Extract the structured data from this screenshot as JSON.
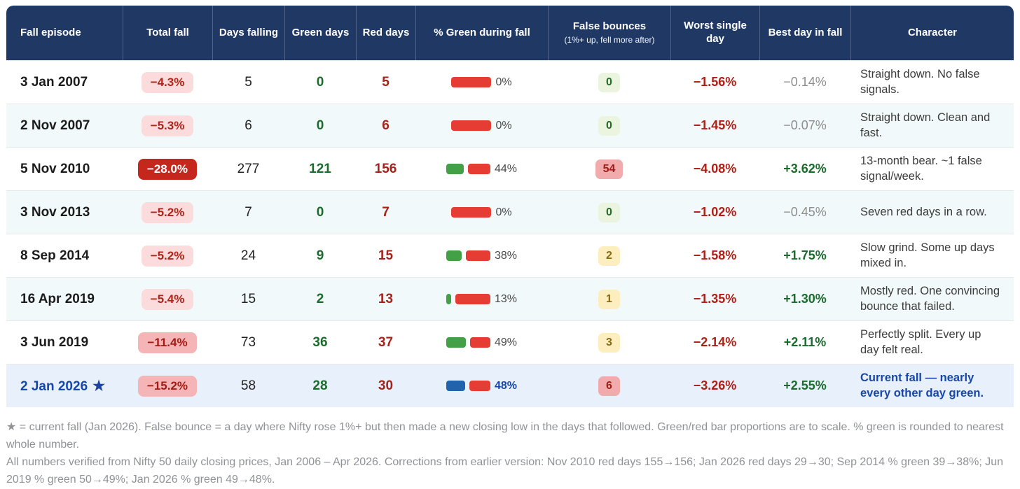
{
  "table": {
    "columns": [
      {
        "label": "Fall episode"
      },
      {
        "label": "Total fall"
      },
      {
        "label": "Days falling"
      },
      {
        "label": "Green days"
      },
      {
        "label": "Red days"
      },
      {
        "label": "% Green during fall"
      },
      {
        "label": "False bounces",
        "sublabel": "(1%+ up, fell more after)"
      },
      {
        "label": "Worst single day"
      },
      {
        "label": "Best day in fall"
      },
      {
        "label": "Character"
      }
    ],
    "rows": [
      {
        "episode": "3 Jan 2007",
        "star": false,
        "total_fall": {
          "text": "−4.3%",
          "severity": "light"
        },
        "days_falling": "5",
        "green_days": "0",
        "red_days": "5",
        "pct_green": {
          "value": 0,
          "label": "0%",
          "bar_color": "green"
        },
        "false_bounces": {
          "text": "0",
          "level": "green"
        },
        "worst_day": "−1.56%",
        "best_day": {
          "text": "−0.14%",
          "positive": false
        },
        "character": "Straight down. No false signals."
      },
      {
        "episode": "2 Nov 2007",
        "star": false,
        "total_fall": {
          "text": "−5.3%",
          "severity": "light"
        },
        "days_falling": "6",
        "green_days": "0",
        "red_days": "6",
        "pct_green": {
          "value": 0,
          "label": "0%",
          "bar_color": "green"
        },
        "false_bounces": {
          "text": "0",
          "level": "green"
        },
        "worst_day": "−1.45%",
        "best_day": {
          "text": "−0.07%",
          "positive": false
        },
        "character": "Straight down. Clean and fast."
      },
      {
        "episode": "5 Nov 2010",
        "star": false,
        "total_fall": {
          "text": "−28.0%",
          "severity": "solid"
        },
        "days_falling": "277",
        "green_days": "121",
        "red_days": "156",
        "pct_green": {
          "value": 44,
          "label": "44%",
          "bar_color": "green"
        },
        "false_bounces": {
          "text": "54",
          "level": "red"
        },
        "worst_day": "−4.08%",
        "best_day": {
          "text": "+3.62%",
          "positive": true
        },
        "character": "13-month bear. ~1 false signal/week."
      },
      {
        "episode": "3 Nov 2013",
        "star": false,
        "total_fall": {
          "text": "−5.2%",
          "severity": "light"
        },
        "days_falling": "7",
        "green_days": "0",
        "red_days": "7",
        "pct_green": {
          "value": 0,
          "label": "0%",
          "bar_color": "green"
        },
        "false_bounces": {
          "text": "0",
          "level": "green"
        },
        "worst_day": "−1.02%",
        "best_day": {
          "text": "−0.45%",
          "positive": false
        },
        "character": "Seven red days in a row."
      },
      {
        "episode": "8 Sep 2014",
        "star": false,
        "total_fall": {
          "text": "−5.2%",
          "severity": "light"
        },
        "days_falling": "24",
        "green_days": "9",
        "red_days": "15",
        "pct_green": {
          "value": 38,
          "label": "38%",
          "bar_color": "green"
        },
        "false_bounces": {
          "text": "2",
          "level": "yellow"
        },
        "worst_day": "−1.58%",
        "best_day": {
          "text": "+1.75%",
          "positive": true
        },
        "character": "Slow grind. Some up days mixed in."
      },
      {
        "episode": "16 Apr 2019",
        "star": false,
        "total_fall": {
          "text": "−5.4%",
          "severity": "light"
        },
        "days_falling": "15",
        "green_days": "2",
        "red_days": "13",
        "pct_green": {
          "value": 13,
          "label": "13%",
          "bar_color": "green"
        },
        "false_bounces": {
          "text": "1",
          "level": "yellow"
        },
        "worst_day": "−1.35%",
        "best_day": {
          "text": "+1.30%",
          "positive": true
        },
        "character": "Mostly red. One convincing bounce that failed."
      },
      {
        "episode": "3 Jun 2019",
        "star": false,
        "total_fall": {
          "text": "−11.4%",
          "severity": "medium"
        },
        "days_falling": "73",
        "green_days": "36",
        "red_days": "37",
        "pct_green": {
          "value": 49,
          "label": "49%",
          "bar_color": "green"
        },
        "false_bounces": {
          "text": "3",
          "level": "yellow"
        },
        "worst_day": "−2.14%",
        "best_day": {
          "text": "+2.11%",
          "positive": true
        },
        "character": "Perfectly split. Every up day felt real."
      },
      {
        "episode": "2 Jan 2026",
        "star": true,
        "total_fall": {
          "text": "−15.2%",
          "severity": "medium"
        },
        "days_falling": "58",
        "green_days": "28",
        "red_days": "30",
        "pct_green": {
          "value": 48,
          "label": "48%",
          "bar_color": "blue"
        },
        "false_bounces": {
          "text": "6",
          "level": "red"
        },
        "worst_day": "−3.26%",
        "best_day": {
          "text": "+2.55%",
          "positive": true
        },
        "character": "Current fall — nearly every other day green."
      }
    ]
  },
  "icons": {
    "star": "★"
  },
  "colors": {
    "header_bg": "#1f3864",
    "bar_green": "#43a047",
    "bar_red": "#e53d33",
    "bar_blue": "#2163ac",
    "current_blue": "#1747a8"
  },
  "footnotes": [
    "★ = current fall (Jan 2026). False bounce = a day where Nifty rose 1%+ but then made a new closing low in the days that followed. Green/red bar proportions are to scale. % green is rounded to nearest whole number.",
    "All numbers verified from Nifty 50 daily closing prices, Jan 2006 – Apr 2026. Corrections from earlier version: Nov 2010 red days 155→156; Jan 2026 red days 29→30; Sep 2014 % green 39→38%; Jun 2019 % green 50→49%; Jan 2026 % green 49→48%."
  ]
}
